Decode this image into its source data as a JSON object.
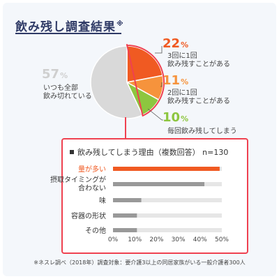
{
  "title": "飲み残し調査結果",
  "title_mark": "※",
  "chart_data": [
    {
      "type": "pie",
      "slices": [
        {
          "label": "3回に1回\n飲み残すことがある",
          "value": 22,
          "display": "22",
          "color": "#f05a22"
        },
        {
          "label": "2回に1回\n飲み残すことがある",
          "value": 11,
          "display": "11",
          "color": "#f6933c"
        },
        {
          "label": "毎回飲み残してしまう",
          "value": 10,
          "display": "10",
          "color": "#8dc63f"
        },
        {
          "label": "いつも全部\n飲み切れている",
          "value": 57,
          "display": "57",
          "color": "#d9d9d9"
        }
      ],
      "unit": "%"
    },
    {
      "type": "bar",
      "title": "飲み残してしまう理由（複数回答） n=130",
      "categories": [
        "量が多い",
        "摂取タイミングが\n合わない",
        "味",
        "容器の形状",
        "その他"
      ],
      "values": [
        49,
        42,
        13,
        11,
        11
      ],
      "highlight_index": 0,
      "highlight_color": "#f05a22",
      "bar_color": "#999999",
      "track_color": "#e6e6e6",
      "xlim": [
        0,
        50
      ],
      "xticks": [
        "0%",
        "10%",
        "20%",
        "30%",
        "40%",
        "50%"
      ]
    }
  ],
  "footnote": "※ネスレ調べ（2018年）調査対象：要介護3以上の同居家族がいる一般介護者300人"
}
